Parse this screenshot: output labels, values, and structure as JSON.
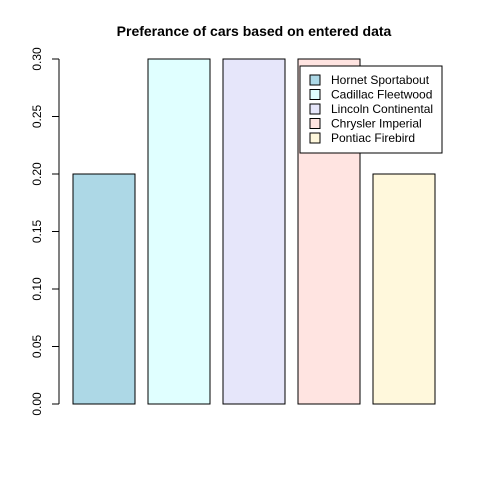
{
  "chart_data": {
    "type": "bar",
    "title": "Preferance of cars based on entered data",
    "xlabel": "",
    "ylabel": "",
    "ylim": [
      0,
      0.3
    ],
    "yticks": [
      "0.00",
      "0.05",
      "0.10",
      "0.15",
      "0.20",
      "0.25",
      "0.30"
    ],
    "categories": [
      "Hornet Sportabout",
      "Cadillac Fleetwood",
      "Lincoln Continental",
      "Chrysler Imperial",
      "Pontiac Firebird"
    ],
    "values": [
      0.2,
      0.3,
      0.3,
      0.3,
      0.2
    ],
    "colors": [
      "#add8e6",
      "#e0ffff",
      "#e6e6fa",
      "#ffe4e1",
      "#fff8dc"
    ],
    "legend": {
      "position": "top-right",
      "entries": [
        "Hornet Sportabout",
        "Cadillac Fleetwood",
        "Lincoln Continental",
        "Chrysler Imperial",
        "Pontiac Firebird"
      ]
    },
    "grid": false
  }
}
